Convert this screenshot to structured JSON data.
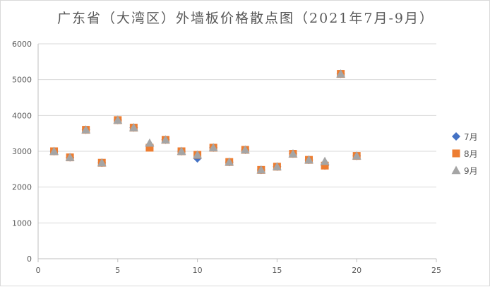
{
  "chart_data": {
    "type": "scatter",
    "title": "广东省（大湾区）外墙板价格散点图（2021年7月-9月）",
    "xlabel": "",
    "ylabel": "",
    "xlim": [
      0,
      25
    ],
    "ylim": [
      0,
      6000
    ],
    "xticks": [
      0,
      5,
      10,
      15,
      20,
      25
    ],
    "yticks": [
      0,
      1000,
      2000,
      3000,
      4000,
      5000,
      6000
    ],
    "grid": "horizontal",
    "legend_position": "right",
    "series": [
      {
        "name": "7月",
        "marker": "diamond",
        "color": "#4472C4",
        "points": [
          [
            1,
            3000
          ],
          [
            2,
            2830
          ],
          [
            3,
            3600
          ],
          [
            4,
            2680
          ],
          [
            5,
            3870
          ],
          [
            6,
            3660
          ],
          [
            7,
            3170
          ],
          [
            8,
            3320
          ],
          [
            9,
            3000
          ],
          [
            10,
            2800
          ],
          [
            11,
            3100
          ],
          [
            12,
            2700
          ],
          [
            13,
            3040
          ],
          [
            14,
            2480
          ],
          [
            15,
            2570
          ],
          [
            16,
            2930
          ],
          [
            17,
            2760
          ],
          [
            18,
            2600
          ],
          [
            19,
            5160
          ],
          [
            20,
            2870
          ]
        ]
      },
      {
        "name": "8月",
        "marker": "square",
        "color": "#ED7D31",
        "points": [
          [
            1,
            3000
          ],
          [
            2,
            2830
          ],
          [
            3,
            3600
          ],
          [
            4,
            2680
          ],
          [
            5,
            3870
          ],
          [
            6,
            3660
          ],
          [
            7,
            3100
          ],
          [
            8,
            3320
          ],
          [
            9,
            3000
          ],
          [
            10,
            2900
          ],
          [
            11,
            3100
          ],
          [
            12,
            2700
          ],
          [
            13,
            3040
          ],
          [
            14,
            2480
          ],
          [
            15,
            2570
          ],
          [
            16,
            2930
          ],
          [
            17,
            2760
          ],
          [
            18,
            2600
          ],
          [
            19,
            5160
          ],
          [
            20,
            2870
          ]
        ]
      },
      {
        "name": "9月",
        "marker": "triangle",
        "color": "#A5A5A5",
        "points": [
          [
            1,
            3000
          ],
          [
            2,
            2830
          ],
          [
            3,
            3600
          ],
          [
            4,
            2680
          ],
          [
            5,
            3870
          ],
          [
            6,
            3660
          ],
          [
            7,
            3230
          ],
          [
            8,
            3320
          ],
          [
            9,
            3000
          ],
          [
            10,
            2900
          ],
          [
            11,
            3100
          ],
          [
            12,
            2700
          ],
          [
            13,
            3040
          ],
          [
            14,
            2480
          ],
          [
            15,
            2570
          ],
          [
            16,
            2930
          ],
          [
            17,
            2760
          ],
          [
            18,
            2720
          ],
          [
            19,
            5160
          ],
          [
            20,
            2870
          ]
        ]
      }
    ]
  }
}
